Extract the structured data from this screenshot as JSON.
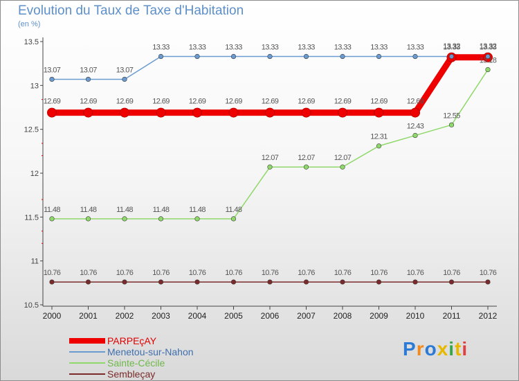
{
  "chart_data": {
    "type": "line",
    "title": "Evolution du Taux de Taxe d'Habitation",
    "ylabel": "(en %)",
    "xlabel": "",
    "ylim": [
      10.5,
      13.5
    ],
    "yticks": [
      "10.5",
      "11",
      "11.5",
      "12",
      "12.5",
      "13",
      "13.5"
    ],
    "x": [
      "2000",
      "2001",
      "2002",
      "2003",
      "2004",
      "2005",
      "2006",
      "2007",
      "2008",
      "2009",
      "2010",
      "2011",
      "2012"
    ],
    "grid": false,
    "legend_position": "bottom-left",
    "series": [
      {
        "name": "PARPEçAY",
        "color": "#ee0000",
        "values": [
          12.69,
          12.69,
          12.69,
          12.69,
          12.69,
          12.69,
          12.69,
          12.69,
          12.69,
          12.69,
          12.69,
          13.32,
          13.32
        ],
        "labels": [
          "12.69",
          "12.69",
          "12.69",
          "12.69",
          "12.69",
          "12.69",
          "12.69",
          "12.69",
          "12.69",
          "12.69",
          "12.69",
          "13.32",
          "13.32"
        ]
      },
      {
        "name": "Menetou-sur-Nahon",
        "color": "#6a9bd0",
        "values": [
          13.07,
          13.07,
          13.07,
          13.33,
          13.33,
          13.33,
          13.33,
          13.33,
          13.33,
          13.33,
          13.33,
          13.33,
          13.33
        ],
        "labels": [
          "13.07",
          "13.07",
          "13.07",
          "13.33",
          "13.33",
          "13.33",
          "13.33",
          "13.33",
          "13.33",
          "13.33",
          "13.33",
          "13.33",
          "13.33"
        ]
      },
      {
        "name": "Sainte-Cécile",
        "color": "#8fd86a",
        "values": [
          11.48,
          11.48,
          11.48,
          11.48,
          11.48,
          11.48,
          12.07,
          12.07,
          12.07,
          12.31,
          12.43,
          12.55,
          13.18
        ],
        "labels": [
          "11.48",
          "11.48",
          "11.48",
          "11.48",
          "11.48",
          "11.48",
          "12.07",
          "12.07",
          "12.07",
          "12.31",
          "12.43",
          "12.55",
          "13.18"
        ]
      },
      {
        "name": "Sembleçay",
        "color": "#7a2a2a",
        "values": [
          10.76,
          10.76,
          10.76,
          10.76,
          10.76,
          10.76,
          10.76,
          10.76,
          10.76,
          10.76,
          10.76,
          10.76,
          10.76
        ],
        "labels": [
          "10.76",
          "10.76",
          "10.76",
          "10.76",
          "10.76",
          "10.76",
          "10.76",
          "10.76",
          "10.76",
          "10.76",
          "10.76",
          "10.76",
          "10.76"
        ]
      }
    ]
  },
  "logo": {
    "letters": [
      "P",
      "r",
      "o",
      "x",
      "i",
      "t",
      "i"
    ],
    "colors": [
      "#2b7bd6",
      "#f08a1c",
      "#2b7bd6",
      "#e8b800",
      "#3aa64a",
      "#e8b800",
      "#e04040"
    ]
  }
}
